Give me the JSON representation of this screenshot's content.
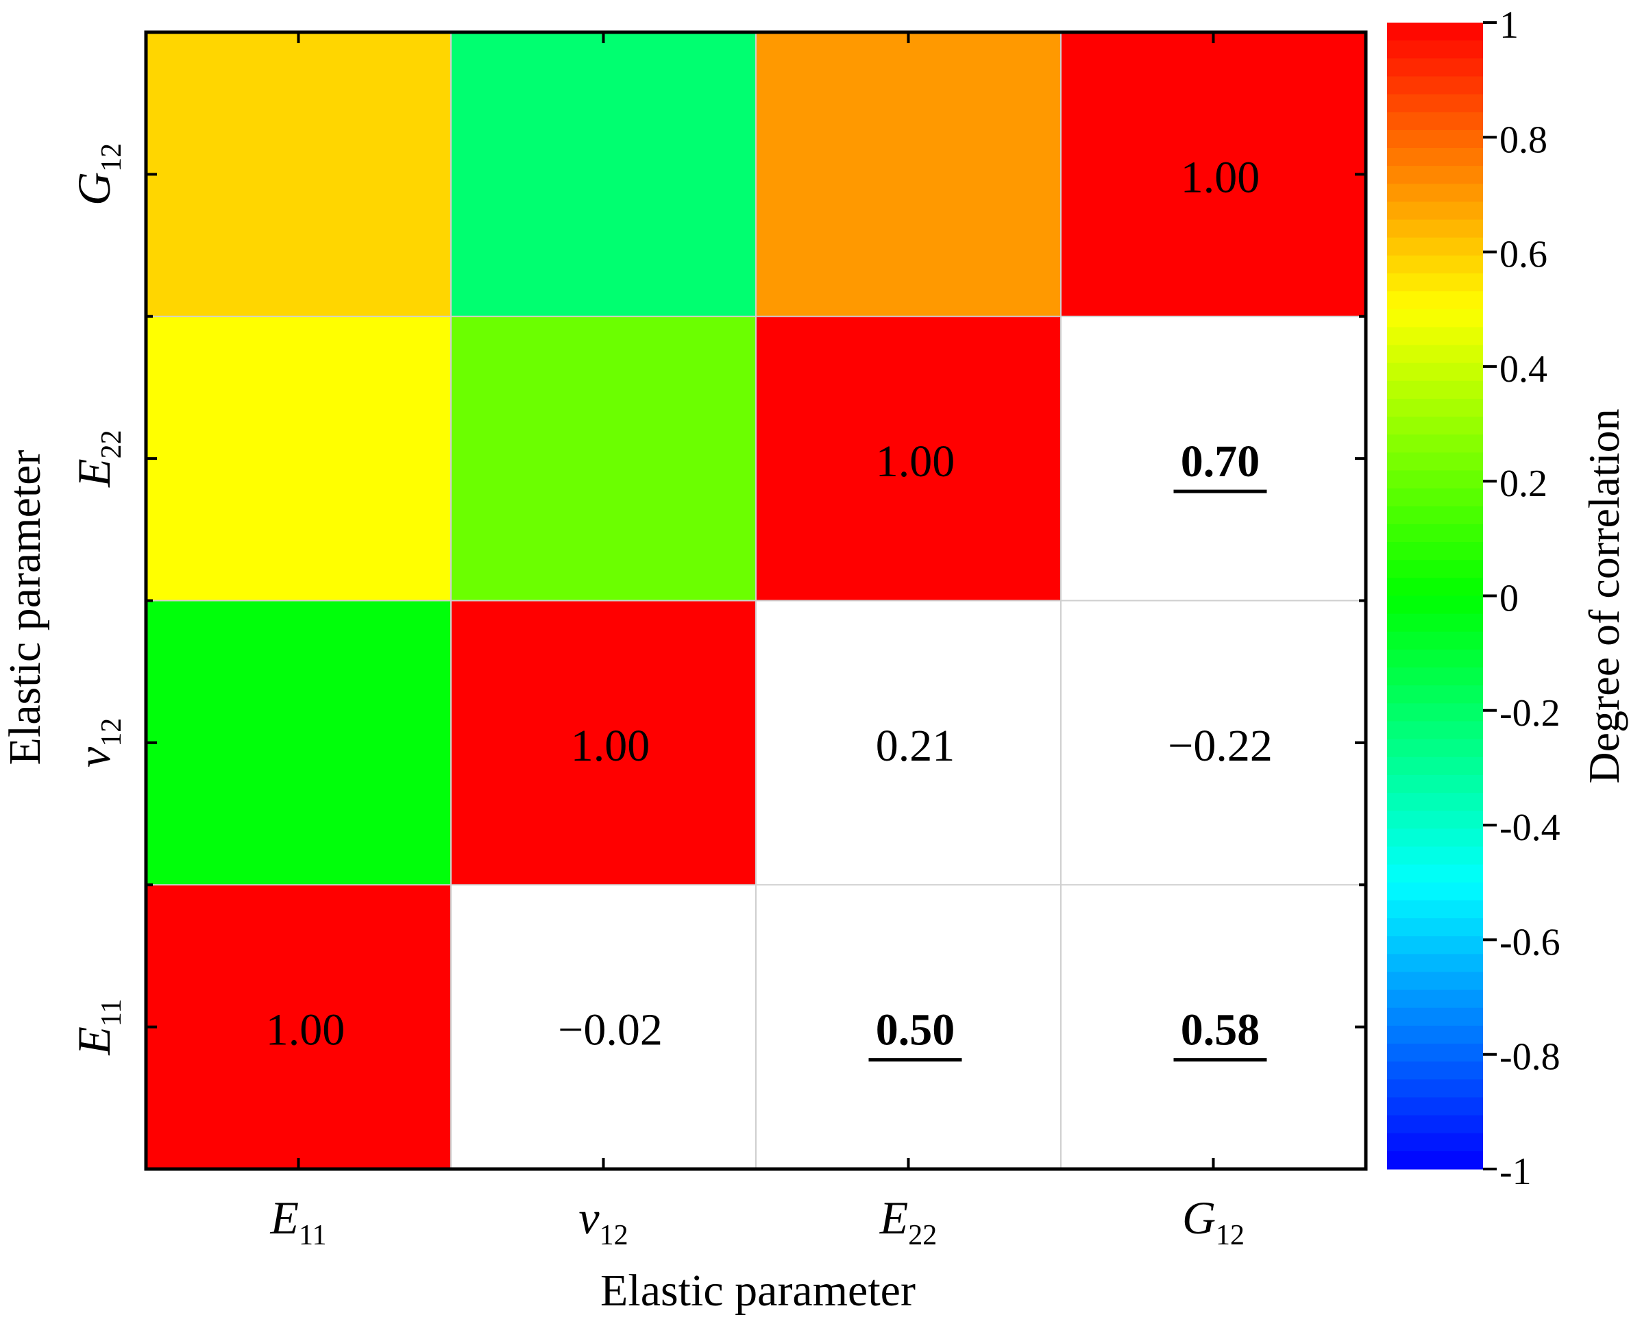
{
  "chart_data": {
    "type": "heatmap",
    "title": "",
    "xlabel": "Elastic parameter",
    "ylabel": "Elastic parameter",
    "colorbar_label": "Degree of correlation",
    "parameters": [
      {
        "base": "E",
        "sub": "11"
      },
      {
        "base": "v",
        "sub": "12"
      },
      {
        "base": "E",
        "sub": "22"
      },
      {
        "base": "G",
        "sub": "12"
      }
    ],
    "matrix": [
      [
        1.0,
        -0.02,
        0.5,
        0.58
      ],
      [
        -0.02,
        1.0,
        0.21,
        -0.22
      ],
      [
        0.5,
        0.21,
        1.0,
        0.7
      ],
      [
        0.58,
        -0.22,
        0.7,
        1.0
      ]
    ],
    "labels": [
      {
        "row": 0,
        "col": 0,
        "text": "1.00",
        "bold": false
      },
      {
        "row": 0,
        "col": 1,
        "text": "−0.02",
        "bold": false
      },
      {
        "row": 0,
        "col": 2,
        "text": "0.50",
        "bold": true
      },
      {
        "row": 0,
        "col": 3,
        "text": "0.58",
        "bold": true
      },
      {
        "row": 1,
        "col": 1,
        "text": "1.00",
        "bold": false
      },
      {
        "row": 1,
        "col": 2,
        "text": "0.21",
        "bold": false
      },
      {
        "row": 1,
        "col": 3,
        "text": "−0.22",
        "bold": false
      },
      {
        "row": 2,
        "col": 2,
        "text": "1.00",
        "bold": false
      },
      {
        "row": 2,
        "col": 3,
        "text": "0.70",
        "bold": true
      },
      {
        "row": 3,
        "col": 3,
        "text": "1.00",
        "bold": false
      }
    ],
    "colorbar_range": [
      -1,
      1
    ],
    "colorbar_ticks": [
      "1",
      "0.8",
      "0.6",
      "0.4",
      "0.2",
      "0",
      "-0.2",
      "-0.4",
      "-0.6",
      "-0.8",
      "-1"
    ],
    "colormap": [
      "#0000ff",
      "#00ffff",
      "#00ff00",
      "#ffff00",
      "#ff0000"
    ]
  }
}
